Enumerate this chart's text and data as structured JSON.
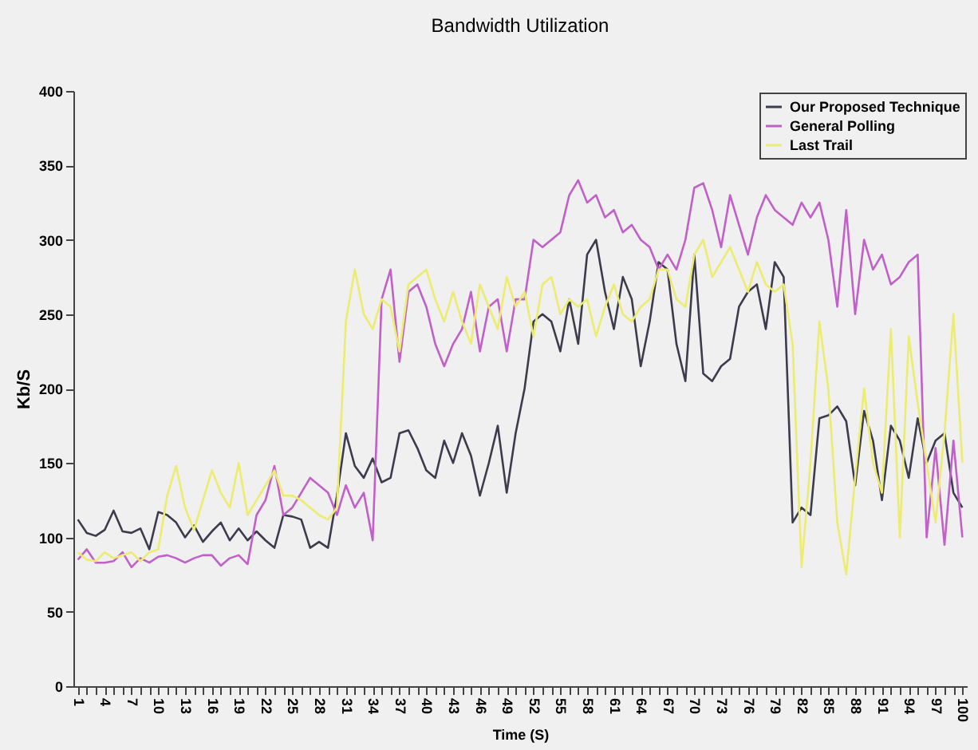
{
  "chart_data": {
    "type": "line",
    "title": "Bandwidth Utilization",
    "xlabel": "Time (S)",
    "ylabel": "Kb/S",
    "categories": [
      "1",
      null,
      null,
      "4",
      null,
      null,
      "7",
      null,
      null,
      "10",
      null,
      null,
      "13",
      null,
      null,
      "16",
      null,
      null,
      "19",
      null,
      null,
      "22",
      null,
      null,
      "25",
      null,
      null,
      "28",
      null,
      null,
      "31",
      null,
      null,
      "34",
      null,
      null,
      "37",
      null,
      null,
      "40",
      null,
      null,
      "43",
      null,
      null,
      "46",
      null,
      null,
      "49",
      null,
      null,
      "52",
      null,
      null,
      "55",
      null,
      null,
      "58",
      null,
      null,
      "61",
      null,
      null,
      "64",
      null,
      null,
      "67",
      null,
      null,
      "70",
      null,
      null,
      "73",
      null,
      null,
      "76",
      null,
      null,
      "79",
      null,
      null,
      "82",
      null,
      null,
      "85",
      null,
      null,
      "88",
      null,
      null,
      "91",
      null,
      null,
      "94",
      null,
      null,
      "97",
      null,
      null,
      "100"
    ],
    "series": [
      {
        "name": "Our Proposed Technique",
        "color": "#3c3c4c",
        "values": [
          112,
          103,
          101,
          105,
          118,
          104,
          103,
          106,
          92,
          117,
          115,
          110,
          100,
          108,
          97,
          104,
          110,
          98,
          106,
          98,
          104,
          98,
          93,
          115,
          114,
          112,
          93,
          97,
          93,
          128,
          170,
          148,
          140,
          153,
          137,
          140,
          170,
          172,
          160,
          145,
          140,
          165,
          150,
          170,
          155,
          128,
          150,
          175,
          130,
          170,
          200,
          245,
          250,
          245,
          225,
          260,
          230,
          290,
          300,
          265,
          240,
          275,
          260,
          215,
          245,
          285,
          280,
          230,
          205,
          290,
          210,
          205,
          215,
          220,
          255,
          265,
          270,
          240,
          285,
          275,
          110,
          120,
          115,
          180,
          182,
          188,
          178,
          135,
          185,
          165,
          125,
          175,
          165,
          140,
          180,
          150,
          165,
          170,
          130,
          120
        ]
      },
      {
        "name": "General Polling",
        "color": "#c060c8",
        "values": [
          85,
          92,
          83,
          83,
          84,
          90,
          80,
          86,
          83,
          87,
          88,
          86,
          83,
          86,
          88,
          88,
          81,
          86,
          88,
          82,
          115,
          125,
          148,
          115,
          120,
          130,
          140,
          135,
          130,
          115,
          135,
          120,
          130,
          98,
          260,
          280,
          218,
          265,
          270,
          255,
          230,
          215,
          230,
          240,
          265,
          225,
          255,
          260,
          225,
          260,
          260,
          300,
          295,
          300,
          305,
          330,
          340,
          325,
          330,
          315,
          320,
          305,
          310,
          300,
          295,
          280,
          290,
          280,
          300,
          335,
          338,
          320,
          295,
          330,
          310,
          290,
          315,
          330,
          320,
          315,
          310,
          325,
          315,
          325,
          300,
          255,
          320,
          250,
          300,
          280,
          290,
          270,
          275,
          285,
          290,
          100,
          160,
          95,
          165,
          100
        ]
      },
      {
        "name": "Last Trail",
        "color": "#ecec70",
        "values": [
          90,
          85,
          84,
          90,
          86,
          88,
          90,
          84,
          90,
          92,
          128,
          148,
          120,
          105,
          125,
          145,
          130,
          120,
          150,
          115,
          125,
          135,
          145,
          128,
          128,
          125,
          120,
          115,
          112,
          120,
          245,
          280,
          250,
          240,
          260,
          255,
          225,
          270,
          275,
          280,
          260,
          245,
          265,
          245,
          230,
          270,
          255,
          240,
          275,
          255,
          265,
          235,
          270,
          275,
          250,
          260,
          255,
          260,
          235,
          255,
          270,
          250,
          245,
          255,
          260,
          280,
          280,
          260,
          255,
          290,
          300,
          275,
          285,
          295,
          280,
          265,
          285,
          270,
          265,
          270,
          230,
          80,
          150,
          245,
          200,
          110,
          75,
          140,
          200,
          150,
          130,
          240,
          100,
          235,
          190,
          150,
          110,
          170,
          250,
          150
        ]
      }
    ],
    "ylim": [
      0,
      400
    ],
    "yticks": [
      0,
      50,
      100,
      150,
      200,
      250,
      300,
      350,
      400
    ],
    "legend": "top right"
  }
}
